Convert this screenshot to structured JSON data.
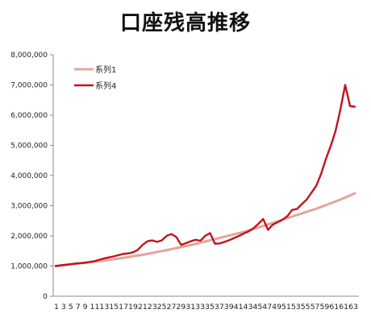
{
  "chart_data": {
    "type": "line",
    "title": "口座残高推移",
    "xlabel": "",
    "ylabel": "",
    "ylim": [
      0,
      8000000
    ],
    "y_ticks": [
      0,
      1000000,
      2000000,
      3000000,
      4000000,
      5000000,
      6000000,
      7000000,
      8000000
    ],
    "y_tick_labels": [
      "0",
      "1,000,000",
      "2,000,000",
      "3,000,000",
      "4,000,000",
      "5,000,000",
      "6,000,000",
      "7,000,000",
      "8,000,000"
    ],
    "x_tick_labels": "1 3 5 7 9 11131517192123252729313335373941434547495153555759616163",
    "grid": false,
    "legend_position": "top-left",
    "series": [
      {
        "name": "系列1",
        "color": "#e4a49c",
        "x": [
          1,
          5,
          10,
          15,
          20,
          25,
          30,
          35,
          40,
          45,
          50,
          55,
          60,
          63
        ],
        "values": [
          1000000,
          1070000,
          1160000,
          1270000,
          1400000,
          1560000,
          1730000,
          1930000,
          2130000,
          2380000,
          2640000,
          2900000,
          3200000,
          3410000
        ]
      },
      {
        "name": "系列4",
        "color": "#c0141c",
        "x": [
          1,
          3,
          5,
          7,
          9,
          11,
          13,
          15,
          16,
          17,
          18,
          19,
          20,
          21,
          22,
          23,
          24,
          25,
          26,
          27,
          28,
          29,
          30,
          31,
          32,
          33,
          34,
          35,
          36,
          37,
          38,
          39,
          40,
          41,
          42,
          43,
          44,
          45,
          46,
          47,
          48,
          49,
          50,
          51,
          52,
          53,
          54,
          55,
          56,
          57,
          58,
          59,
          60,
          61,
          62,
          63
        ],
        "values": [
          1000000,
          1040000,
          1080000,
          1110000,
          1160000,
          1250000,
          1320000,
          1400000,
          1420000,
          1450000,
          1530000,
          1700000,
          1820000,
          1850000,
          1800000,
          1850000,
          2000000,
          2060000,
          1960000,
          1700000,
          1760000,
          1820000,
          1870000,
          1840000,
          2000000,
          2090000,
          1740000,
          1750000,
          1800000,
          1860000,
          1930000,
          2000000,
          2080000,
          2150000,
          2250000,
          2400000,
          2560000,
          2200000,
          2370000,
          2450000,
          2530000,
          2650000,
          2860000,
          2890000,
          3050000,
          3200000,
          3430000,
          3660000,
          4050000,
          4550000,
          4980000,
          5480000,
          6180000,
          7000000,
          6300000,
          6280000
        ]
      }
    ]
  }
}
